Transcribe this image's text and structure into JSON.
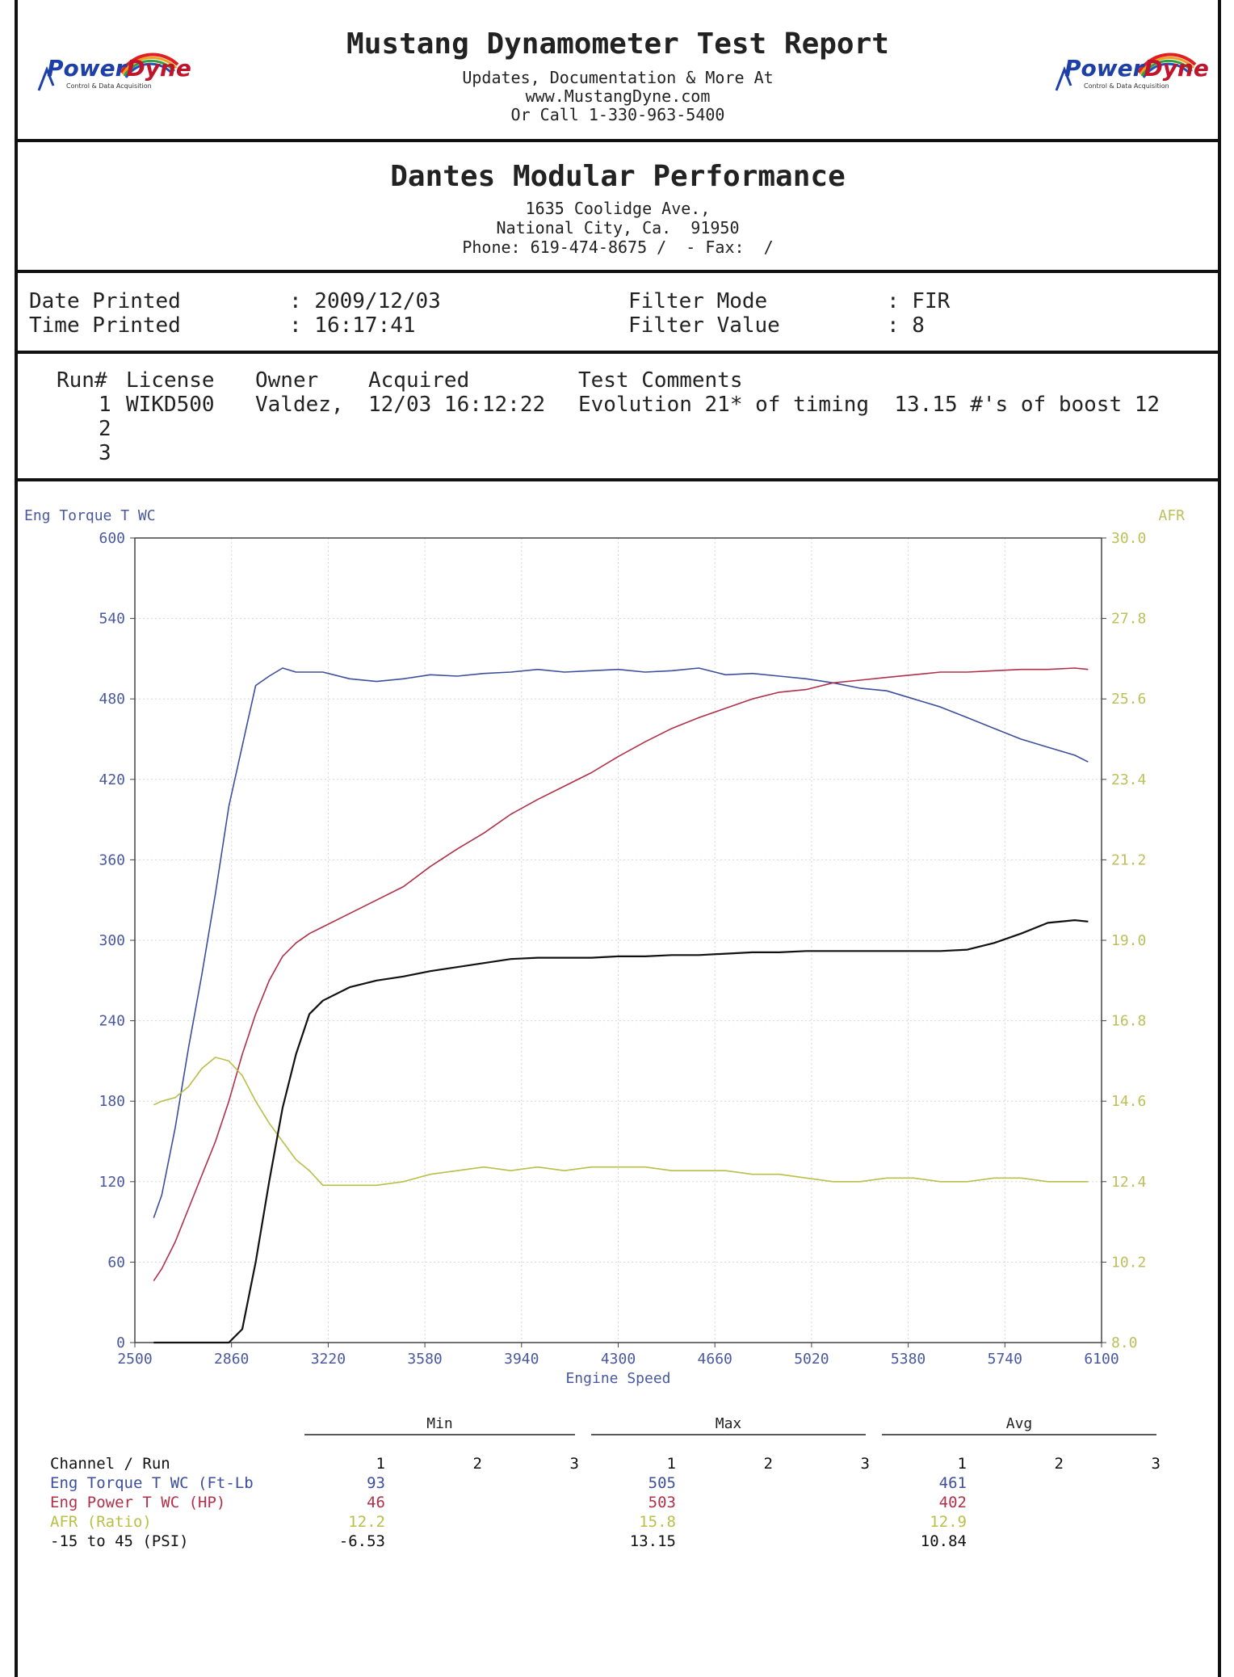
{
  "header": {
    "title": "Mustang Dynamometer Test Report",
    "line1": "Updates, Documentation & More At",
    "line2": "www.MustangDyne.com",
    "line3": "Or Call 1-330-963-5400",
    "logo_left": {
      "word1": "Power",
      "word2": "Dyne",
      "tagline": "Control & Data Acquisition"
    },
    "logo_right": {
      "word1": "Power",
      "word2": "Dyne",
      "tagline": "Control & Data Acquisition"
    }
  },
  "shop": {
    "name": "Dantes Modular Performance",
    "address": "1635 Coolidge Ave.,",
    "city": "National City, Ca.  91950",
    "phone": "Phone: 619-474-8675 /  - Fax:  /"
  },
  "info": {
    "date_label": "Date Printed",
    "date_value": ": 2009/12/03",
    "time_label": "Time Printed",
    "time_value": ": 16:17:41",
    "filter_mode_label": "Filter Mode",
    "filter_mode_value": ": FIR",
    "filter_value_label": "Filter Value",
    "filter_value_value": ": 8"
  },
  "runs": {
    "headers": [
      "Run#",
      "License",
      "Owner",
      "Acquired",
      "Test Comments"
    ],
    "rows": [
      {
        "run": "1",
        "license": "WIKD500",
        "owner": "Valdez,",
        "acquired": "12/03 16:12:22",
        "comments": "Evolution 21* of timing  13.15 #'s of boost 12"
      },
      {
        "run": "2",
        "license": "",
        "owner": "",
        "acquired": "",
        "comments": ""
      },
      {
        "run": "3",
        "license": "",
        "owner": "",
        "acquired": "",
        "comments": ""
      }
    ]
  },
  "colors": {
    "torque": "#3d4e9c",
    "power": "#b0304a",
    "afr": "#b9bf48",
    "boost": "#111111",
    "grid": "#d6d6d6",
    "axis_left": "#4a58a0",
    "axis_right": "#bcbf5a"
  },
  "chart_data": {
    "type": "line",
    "xlabel": "Engine Speed",
    "ylabel": "Eng Torque T WC",
    "y2label": "AFR",
    "xlim": [
      2500,
      6100
    ],
    "ylim": [
      0,
      600
    ],
    "y2lim": [
      8.0,
      30.0
    ],
    "xticks": [
      2500,
      2860,
      3220,
      3580,
      3940,
      4300,
      4660,
      5020,
      5380,
      5740,
      6100
    ],
    "yticks": [
      0,
      60,
      120,
      180,
      240,
      300,
      360,
      420,
      480,
      540,
      600
    ],
    "y2ticks": [
      "8.0",
      "10.2",
      "12.4",
      "14.6",
      "16.8",
      "19.0",
      "21.2",
      "23.4",
      "25.6",
      "27.8",
      "30.0"
    ],
    "grid": true,
    "series": [
      {
        "name": "Eng Torque T WC",
        "axis": "left",
        "x": [
          2570,
          2600,
          2650,
          2700,
          2750,
          2800,
          2850,
          2900,
          2950,
          3000,
          3050,
          3100,
          3150,
          3200,
          3300,
          3400,
          3500,
          3600,
          3700,
          3800,
          3900,
          4000,
          4100,
          4200,
          4300,
          4400,
          4500,
          4600,
          4700,
          4800,
          4900,
          5000,
          5100,
          5200,
          5300,
          5400,
          5500,
          5600,
          5700,
          5800,
          5900,
          6000,
          6050
        ],
        "y": [
          93,
          110,
          160,
          220,
          275,
          335,
          400,
          445,
          490,
          497,
          503,
          500,
          500,
          500,
          495,
          493,
          495,
          498,
          497,
          499,
          500,
          502,
          500,
          501,
          502,
          500,
          501,
          503,
          498,
          499,
          497,
          495,
          492,
          488,
          486,
          480,
          474,
          466,
          458,
          450,
          444,
          438,
          433
        ]
      },
      {
        "name": "Eng Power T WC",
        "axis": "left",
        "x": [
          2570,
          2600,
          2650,
          2700,
          2750,
          2800,
          2850,
          2900,
          2950,
          3000,
          3050,
          3100,
          3150,
          3200,
          3300,
          3400,
          3500,
          3600,
          3700,
          3800,
          3900,
          4000,
          4100,
          4200,
          4300,
          4400,
          4500,
          4600,
          4700,
          4800,
          4900,
          5000,
          5100,
          5200,
          5300,
          5400,
          5500,
          5600,
          5700,
          5800,
          5900,
          6000,
          6050
        ],
        "y": [
          46,
          55,
          75,
          100,
          125,
          150,
          180,
          215,
          245,
          270,
          288,
          298,
          305,
          310,
          320,
          330,
          340,
          355,
          368,
          380,
          394,
          405,
          415,
          425,
          437,
          448,
          458,
          466,
          473,
          480,
          485,
          487,
          492,
          494,
          496,
          498,
          500,
          500,
          501,
          502,
          502,
          503,
          502
        ]
      },
      {
        "name": "AFR (Ratio)",
        "axis": "right",
        "x": [
          2570,
          2600,
          2650,
          2700,
          2750,
          2800,
          2850,
          2900,
          2950,
          3000,
          3050,
          3100,
          3150,
          3200,
          3300,
          3400,
          3500,
          3600,
          3700,
          3800,
          3900,
          4000,
          4100,
          4200,
          4300,
          4400,
          4500,
          4600,
          4700,
          4800,
          4900,
          5000,
          5100,
          5200,
          5300,
          5400,
          5500,
          5600,
          5700,
          5800,
          5900,
          6000,
          6050
        ],
        "y": [
          14.5,
          14.6,
          14.7,
          15.0,
          15.5,
          15.8,
          15.7,
          15.3,
          14.6,
          14.0,
          13.5,
          13.0,
          12.7,
          12.3,
          12.3,
          12.3,
          12.4,
          12.6,
          12.7,
          12.8,
          12.7,
          12.8,
          12.7,
          12.8,
          12.8,
          12.8,
          12.7,
          12.7,
          12.7,
          12.6,
          12.6,
          12.5,
          12.4,
          12.4,
          12.5,
          12.5,
          12.4,
          12.4,
          12.5,
          12.5,
          12.4,
          12.4,
          12.4
        ]
      },
      {
        "name": "-15 to 45 (PSI)",
        "axis": "left",
        "x": [
          2570,
          2600,
          2650,
          2700,
          2750,
          2800,
          2850,
          2900,
          2950,
          3000,
          3050,
          3100,
          3150,
          3200,
          3300,
          3400,
          3500,
          3600,
          3700,
          3800,
          3900,
          4000,
          4100,
          4200,
          4300,
          4400,
          4500,
          4600,
          4700,
          4800,
          4900,
          5000,
          5100,
          5200,
          5300,
          5400,
          5500,
          5600,
          5700,
          5800,
          5900,
          6000,
          6050
        ],
        "y": [
          0,
          0,
          0,
          0,
          0,
          0,
          0,
          10,
          60,
          120,
          175,
          215,
          245,
          255,
          265,
          270,
          273,
          277,
          280,
          283,
          286,
          287,
          287,
          287,
          288,
          288,
          289,
          289,
          290,
          291,
          291,
          292,
          292,
          292,
          292,
          292,
          292,
          293,
          298,
          305,
          313,
          315,
          314
        ]
      }
    ]
  },
  "summary": {
    "groups": [
      "Min",
      "Max",
      "Avg"
    ],
    "channel_header": "Channel / Run",
    "run_cols": [
      "1",
      "2",
      "3"
    ],
    "rows": [
      {
        "label": "Eng Torque T WC (Ft-Lb",
        "min": "93",
        "max": "505",
        "avg": "461"
      },
      {
        "label": "Eng Power T WC (HP)",
        "min": "46",
        "max": "503",
        "avg": "402"
      },
      {
        "label": "AFR (Ratio)",
        "min": "12.2",
        "max": "15.8",
        "avg": "12.9"
      },
      {
        "label": "-15 to 45 (PSI)",
        "min": "-6.53",
        "max": "13.15",
        "avg": "10.84"
      }
    ]
  }
}
